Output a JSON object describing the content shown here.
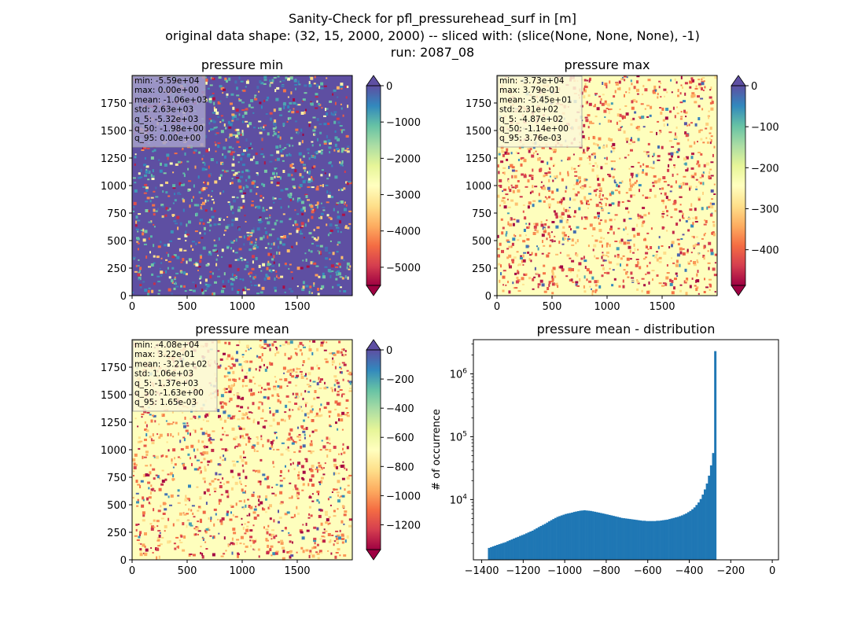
{
  "figure": {
    "title_lines": [
      "Sanity-Check for pfl_pressurehead_surf in [m]",
      "original data shape: (32, 15, 2000, 2000) -- sliced with: (slice(None, None, None), -1)",
      "run: 2087_08"
    ]
  },
  "chart_data": [
    {
      "type": "heatmap",
      "title": "pressure min",
      "colormap": "Spectral",
      "extend": "both",
      "x_ticks": [
        "0",
        "500",
        "1000",
        "1500"
      ],
      "y_ticks": [
        "0",
        "250",
        "500",
        "750",
        "1000",
        "1250",
        "1500",
        "1750"
      ],
      "xlim": [
        0,
        2000
      ],
      "ylim": [
        0,
        2000
      ],
      "colorbar_ticks": [
        "0",
        "−1000",
        "−2000",
        "−3000",
        "−4000",
        "−5000"
      ],
      "colorbar_range": [
        -5500,
        0
      ],
      "stats": [
        "min: -5.59e+04",
        "max: 0.00e+00",
        "mean: -1.06e+03",
        "std: 2.63e+03",
        "q_5: -5.32e+03",
        "q_50: -1.98e+00",
        "q_95: 0.00e+00"
      ],
      "stats_box_color": "#a6a0cc",
      "dominant_color": "#5e4fa2"
    },
    {
      "type": "heatmap",
      "title": "pressure max",
      "colormap": "Spectral",
      "extend": "both",
      "x_ticks": [
        "0",
        "500",
        "1000",
        "1500"
      ],
      "y_ticks": [
        "0",
        "250",
        "500",
        "750",
        "1000",
        "1250",
        "1500",
        "1750"
      ],
      "xlim": [
        0,
        2000
      ],
      "ylim": [
        0,
        2000
      ],
      "colorbar_ticks": [
        "0",
        "−100",
        "−200",
        "−300",
        "−400"
      ],
      "colorbar_range": [
        -487,
        0
      ],
      "stats": [
        "min: -3.73e+04",
        "max: 3.79e-01",
        "mean: -5.45e+01",
        "std: 2.31e+02",
        "q_5: -4.87e+02",
        "q_50: -1.14e+00",
        "q_95: 3.76e-03"
      ],
      "stats_box_color": "#fbf8d8",
      "dominant_color": "#fefebd"
    },
    {
      "type": "heatmap",
      "title": "pressure mean",
      "colormap": "Spectral",
      "extend": "both",
      "x_ticks": [
        "0",
        "500",
        "1000",
        "1500"
      ],
      "y_ticks": [
        "0",
        "250",
        "500",
        "750",
        "1000",
        "1250",
        "1500",
        "1750"
      ],
      "xlim": [
        0,
        2000
      ],
      "ylim": [
        0,
        2000
      ],
      "colorbar_ticks": [
        "0",
        "−200",
        "−400",
        "−600",
        "−800",
        "−1000",
        "−1200"
      ],
      "colorbar_range": [
        -1370,
        0
      ],
      "stats": [
        "min: -4.08e+04",
        "max: 3.22e-01",
        "mean: -3.21e+02",
        "std: 1.06e+03",
        "q_5: -1.37e+03",
        "q_50: -1.63e+00",
        "q_95: 1.65e-03"
      ],
      "stats_box_color": "#fbf8d8",
      "dominant_color": "#fefebd"
    },
    {
      "type": "bar",
      "title": "pressure mean - distribution",
      "ylabel": "# of occurrence",
      "xlabel": "",
      "yscale": "log",
      "color": "#1f77b4",
      "xlim": [
        -1440,
        30
      ],
      "ylim": [
        1100,
        3500000
      ],
      "x_ticks": [
        {
          "value": -1400,
          "label": "−1400"
        },
        {
          "value": -1200,
          "label": "−1200"
        },
        {
          "value": -1000,
          "label": "−1000"
        },
        {
          "value": -800,
          "label": "−800"
        },
        {
          "value": -600,
          "label": "−600"
        },
        {
          "value": -400,
          "label": "−400"
        },
        {
          "value": -200,
          "label": "−200"
        },
        {
          "value": 0,
          "label": "0"
        }
      ],
      "y_ticks": [
        {
          "value": 10000,
          "base": "10",
          "exp": "4"
        },
        {
          "value": 100000,
          "base": "10",
          "exp": "5"
        },
        {
          "value": 1000000,
          "base": "10",
          "exp": "6"
        }
      ],
      "bins": {
        "start": -1370,
        "width": 10,
        "counts": [
          1700,
          1750,
          1800,
          1850,
          1900,
          1950,
          2000,
          2050,
          2100,
          2180,
          2250,
          2320,
          2400,
          2480,
          2550,
          2640,
          2720,
          2800,
          2900,
          3000,
          3100,
          3200,
          3350,
          3500,
          3650,
          3800,
          3950,
          4100,
          4300,
          4500,
          4700,
          4900,
          5100,
          5300,
          5450,
          5600,
          5750,
          5900,
          6000,
          6100,
          6200,
          6350,
          6450,
          6550,
          6650,
          6700,
          6750,
          6700,
          6650,
          6600,
          6500,
          6400,
          6300,
          6200,
          6100,
          6000,
          5900,
          5800,
          5700,
          5600,
          5500,
          5400,
          5300,
          5200,
          5100,
          5050,
          5000,
          4950,
          4900,
          4850,
          4800,
          4750,
          4700,
          4650,
          4600,
          4600,
          4550,
          4550,
          4550,
          4550,
          4550,
          4600,
          4600,
          4650,
          4700,
          4750,
          4800,
          4900,
          5000,
          5100,
          5200,
          5300,
          5450,
          5600,
          5800,
          6000,
          6300,
          6600,
          7000,
          7500,
          8200,
          9000,
          10200,
          12000,
          14500,
          18000,
          24000,
          35000,
          55000,
          2300000
        ]
      }
    }
  ]
}
